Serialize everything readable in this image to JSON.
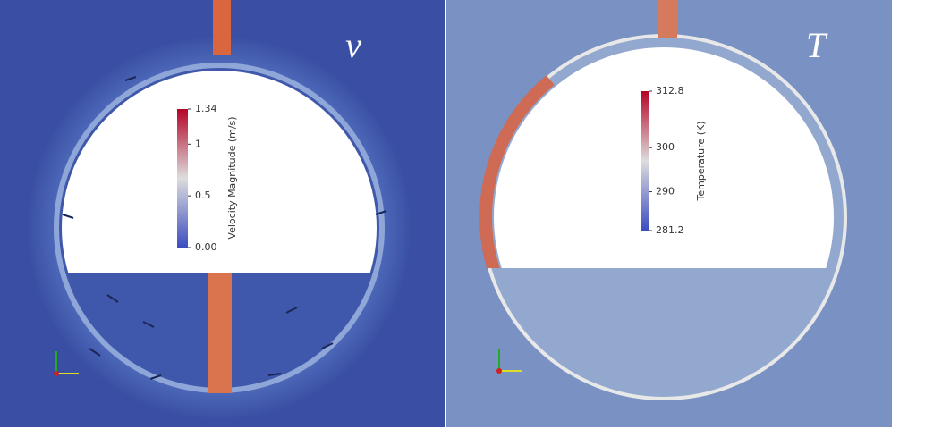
{
  "panels": [
    {
      "label": "v",
      "colorbar": {
        "title": "Velocity Magnitude (m/s)",
        "range": [
          0,
          1.34
        ],
        "ticks": [
          {
            "value": 0,
            "label": "0.00"
          },
          {
            "value": 0.5,
            "label": "0.5"
          },
          {
            "value": 1,
            "label": "1"
          },
          {
            "value": 1.34,
            "label": "1.34"
          }
        ]
      }
    },
    {
      "label": "T",
      "colorbar": {
        "title": "Temperature (K)",
        "range": [
          281.2,
          312.8
        ],
        "ticks": [
          {
            "value": 281.2,
            "label": "281.2"
          },
          {
            "value": 290,
            "label": "290"
          },
          {
            "value": 300,
            "label": "300"
          },
          {
            "value": 312.8,
            "label": "312.8"
          }
        ]
      }
    }
  ]
}
